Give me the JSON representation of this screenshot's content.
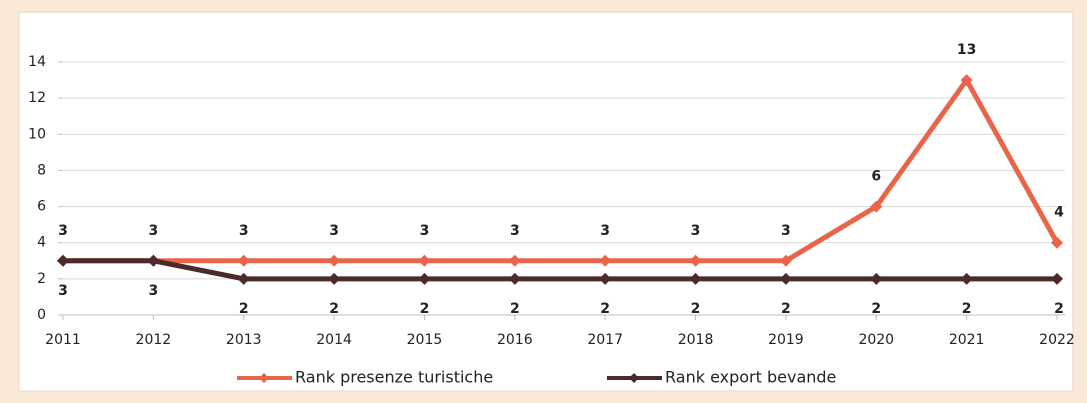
{
  "chart_data": {
    "type": "line",
    "categories": [
      "2011",
      "2012",
      "2013",
      "2014",
      "2015",
      "2016",
      "2017",
      "2018",
      "2019",
      "2020",
      "2021",
      "2022"
    ],
    "series": [
      {
        "name": "Rank presenze turistiche",
        "color": "#e8654a",
        "values": [
          3,
          3,
          3,
          3,
          3,
          3,
          3,
          3,
          3,
          6,
          13,
          4
        ]
      },
      {
        "name": "Rank export bevande",
        "color": "#4b2a2c",
        "values": [
          3,
          3,
          2,
          2,
          2,
          2,
          2,
          2,
          2,
          2,
          2,
          2
        ]
      }
    ],
    "ylim": [
      0,
      14
    ],
    "yticks": [
      0,
      2,
      4,
      6,
      8,
      10,
      12,
      14
    ],
    "grid": true,
    "legend": "bottom"
  }
}
